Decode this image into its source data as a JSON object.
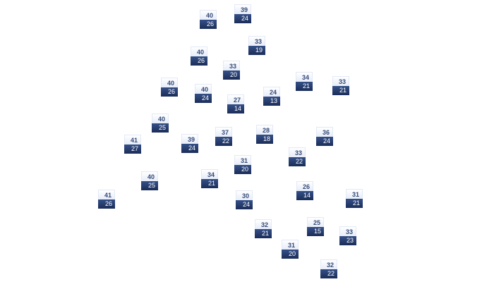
{
  "colors": {
    "label_top_text": "#354a78",
    "label_bottom_bg": "#243b6c",
    "label_bottom_text": "#ffffff"
  },
  "markers": [
    {
      "top": "40",
      "bottom": "26"
    },
    {
      "top": "39",
      "bottom": "24"
    },
    {
      "top": "33",
      "bottom": "19"
    },
    {
      "top": "40",
      "bottom": "26"
    },
    {
      "top": "33",
      "bottom": "20"
    },
    {
      "top": "40",
      "bottom": "26"
    },
    {
      "top": "40",
      "bottom": "24"
    },
    {
      "top": "27",
      "bottom": "14"
    },
    {
      "top": "24",
      "bottom": "13"
    },
    {
      "top": "34",
      "bottom": "21"
    },
    {
      "top": "33",
      "bottom": "21"
    },
    {
      "top": "40",
      "bottom": "25"
    },
    {
      "top": "41",
      "bottom": "27"
    },
    {
      "top": "39",
      "bottom": "24"
    },
    {
      "top": "37",
      "bottom": "22"
    },
    {
      "top": "28",
      "bottom": "18"
    },
    {
      "top": "36",
      "bottom": "24"
    },
    {
      "top": "33",
      "bottom": "22"
    },
    {
      "top": "31",
      "bottom": "20"
    },
    {
      "top": "34",
      "bottom": "21"
    },
    {
      "top": "40",
      "bottom": "25"
    },
    {
      "top": "41",
      "bottom": "26"
    },
    {
      "top": "26",
      "bottom": "14"
    },
    {
      "top": "31",
      "bottom": "21"
    },
    {
      "top": "30",
      "bottom": "24"
    },
    {
      "top": "32",
      "bottom": "21"
    },
    {
      "top": "25",
      "bottom": "15"
    },
    {
      "top": "33",
      "bottom": "23"
    },
    {
      "top": "31",
      "bottom": "20"
    },
    {
      "top": "32",
      "bottom": "22"
    }
  ]
}
